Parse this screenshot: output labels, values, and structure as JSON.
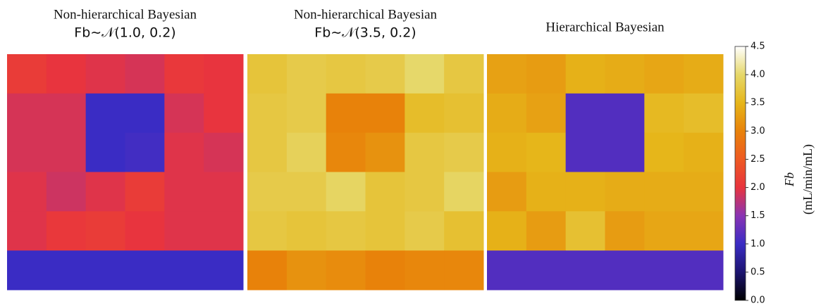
{
  "chart_data": [
    {
      "type": "heatmap",
      "title": "Non-hierarchical Bayesian",
      "subtitle": "Fb∼𝒩(1.0, 0.2)",
      "z": [
        [
          2.1,
          2.0,
          1.95,
          1.9,
          2.05,
          2.0
        ],
        [
          1.9,
          1.9,
          1.0,
          1.0,
          1.9,
          2.0
        ],
        [
          1.9,
          1.9,
          1.0,
          1.05,
          1.95,
          1.9
        ],
        [
          1.95,
          1.85,
          1.95,
          2.1,
          1.95,
          1.95
        ],
        [
          1.95,
          2.05,
          2.1,
          2.0,
          1.95,
          1.95
        ],
        [
          1.0,
          1.0,
          1.0,
          1.0,
          1.0,
          1.0
        ]
      ]
    },
    {
      "type": "heatmap",
      "title": "Non-hierarchical Bayesian",
      "subtitle": "Fb∼𝒩(3.5, 0.2)",
      "z": [
        [
          3.7,
          3.8,
          3.75,
          3.8,
          4.0,
          3.75
        ],
        [
          3.75,
          3.8,
          3.0,
          3.0,
          3.6,
          3.65
        ],
        [
          3.75,
          3.9,
          3.05,
          3.15,
          3.75,
          3.8
        ],
        [
          3.8,
          3.8,
          3.95,
          3.7,
          3.75,
          3.95
        ],
        [
          3.75,
          3.7,
          3.75,
          3.7,
          3.8,
          3.65
        ],
        [
          3.0,
          3.15,
          3.1,
          3.0,
          3.05,
          3.05
        ]
      ]
    },
    {
      "type": "heatmap",
      "title": "Hierarchical Bayesian",
      "z": [
        [
          3.3,
          3.25,
          3.45,
          3.4,
          3.35,
          3.4
        ],
        [
          3.4,
          3.3,
          1.15,
          1.15,
          3.55,
          3.6
        ],
        [
          3.45,
          3.5,
          1.15,
          1.15,
          3.5,
          3.45
        ],
        [
          3.25,
          3.45,
          3.45,
          3.4,
          3.4,
          3.4
        ],
        [
          3.45,
          3.25,
          3.65,
          3.25,
          3.35,
          3.35
        ],
        [
          1.15,
          1.15,
          1.15,
          1.15,
          1.15,
          1.15
        ]
      ]
    }
  ],
  "colorbar": {
    "label": "Fb",
    "unit": "(mL/min/mL)",
    "lim": [
      0,
      4.5
    ],
    "ticks": [
      {
        "value": 0,
        "label": "0.0"
      },
      {
        "value": 0.5,
        "label": "0.5"
      },
      {
        "value": 1,
        "label": "1.0"
      },
      {
        "value": 1.5,
        "label": "1.5"
      },
      {
        "value": 2,
        "label": "2.0"
      },
      {
        "value": 2.5,
        "label": "2.5"
      },
      {
        "value": 3,
        "label": "3.0"
      },
      {
        "value": 3.5,
        "label": "3.5"
      },
      {
        "value": 4,
        "label": "4.0"
      },
      {
        "value": 4.5,
        "label": "4.5"
      }
    ],
    "colorscale": [
      [
        0,
        "#000000"
      ],
      [
        0.5,
        "#1c1470"
      ],
      [
        1.0,
        "#3a2cc4"
      ],
      [
        1.5,
        "#8a34b4"
      ],
      [
        2.0,
        "#e8343e"
      ],
      [
        2.5,
        "#ee5a22"
      ],
      [
        3.0,
        "#e8820a"
      ],
      [
        3.5,
        "#e6b61a"
      ],
      [
        4.0,
        "#e6d86a"
      ],
      [
        4.5,
        "#ffffff"
      ]
    ]
  }
}
